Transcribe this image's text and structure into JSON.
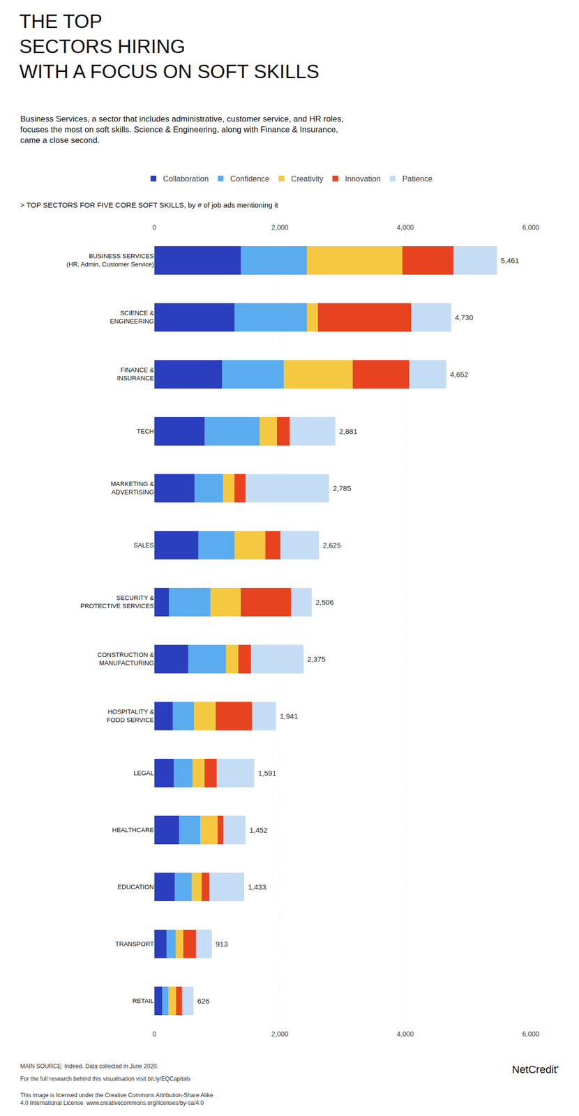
{
  "chart_data": {
    "type": "bar",
    "orientation": "horizontal",
    "stacked": true,
    "title": "THE TOP\nSECTORS HIRING\nWITH A FOCUS ON SOFT SKILLS",
    "subtitle": "> TOP SECTORS FOR FIVE CORE SOFT SKILLS, by # of job ads mentioning it",
    "annotations": [
      "Business Services, a sector that includes administrative, customer service, and HR roles,\nfocuses the most on soft skills. Science & Engineering, along with Finance & Insurance,\ncame a close second.",
      "MAIN SOURCE: Indeed. Data collected in June 2020.",
      "For the full research behind this visualisation visit bit.ly/EQCapitals",
      "This image is licensed under the Creative Commons Attribution-Share Alike\n4.0 International License  www.creativecommons.org/licenses/by-sa/4.0",
      "NetCredit'"
    ],
    "categories": [
      "BUSINESS SERVICES\n(HR, Admin, Customer Service)",
      "SCIENCE &\nENGINEERING",
      "FINANCE &\nINSURANCE",
      "TECH",
      "MARKETING &\nADVERTISING",
      "SALES",
      "SECURITY &\nPROTECTIVE SERVICES",
      "CONSTRUCTION &\nMANUFACTURING",
      "HOSPITALITY &\nFOOD SERVICE",
      "LEGAL",
      "HEALTHCARE",
      "EDUCATION",
      "TRANSPORT",
      "RETAIL"
    ],
    "series": [
      {
        "name": "Collaboration",
        "color": "#2b3fbe",
        "values": [
          1380,
          1280,
          1080,
          800,
          640,
          700,
          230,
          540,
          290,
          310,
          390,
          325,
          195,
          125
        ]
      },
      {
        "name": "Confidence",
        "color": "#5aacee",
        "values": [
          1050,
          1150,
          980,
          880,
          450,
          580,
          660,
          600,
          340,
          295,
          340,
          270,
          145,
          95
        ]
      },
      {
        "name": "Creativity",
        "color": "#f5c842",
        "values": [
          1520,
          180,
          1100,
          270,
          190,
          490,
          490,
          195,
          345,
          195,
          275,
          155,
          125,
          125
        ]
      },
      {
        "name": "Innovation",
        "color": "#e84320",
        "values": [
          820,
          1480,
          900,
          200,
          170,
          235,
          800,
          200,
          580,
          195,
          95,
          125,
          195,
          95
        ]
      },
      {
        "name": "Patience",
        "color": "#c5dcf5",
        "values": [
          691,
          640,
          592,
          731,
          1335,
          620,
          326,
          840,
          386,
          596,
          352,
          558,
          253,
          186
        ]
      }
    ],
    "totals": [
      5461,
      4730,
      4652,
      2881,
      2785,
      2625,
      2506,
      2375,
      1941,
      1591,
      1452,
      1433,
      913,
      626
    ],
    "total_labels": [
      "5,461",
      "4,730",
      "4,652",
      "2,881",
      "2,785",
      "2,625",
      "2,506",
      "2,375",
      "1,941",
      "1,591",
      "1,452",
      "1,433",
      "913",
      "626"
    ],
    "xlim": [
      0,
      6000
    ],
    "xticks": [
      0,
      {
        "value": 2000,
        "label": "2,000"
      },
      {
        "value": 4000,
        "label": "4,000"
      },
      {
        "value": 6000,
        "label": "6,000"
      }
    ],
    "grid": true,
    "legend": "top"
  }
}
